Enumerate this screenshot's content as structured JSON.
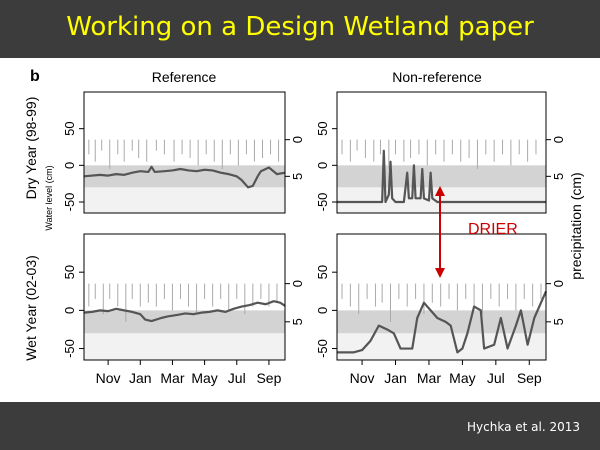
{
  "slide": {
    "title": "Working on a Design Wetland paper",
    "citation": "Hychka et al. 2013"
  },
  "colors": {
    "title": "#ffff00",
    "bar": "#3c3c3c",
    "annotation": "#cc0000",
    "band": "#d3d3d3",
    "below_band": "#f2f2f2",
    "water_line": "#555555",
    "precip_bars": "#aaaaaa"
  },
  "chart_data": {
    "type": "line",
    "panel_letter": "b",
    "column_titles": [
      "Reference",
      "Non-reference"
    ],
    "row_labels": [
      "Dry Year (98-99)",
      "Wet Year (02-03)"
    ],
    "ylabel_left_small": "Water level (cm)",
    "ylabel_right": "precipitation (cm)",
    "x_ticks": [
      "Nov",
      "Jan",
      "Mar",
      "May",
      "Jul",
      "Sep"
    ],
    "x_tick_positions": [
      1.5,
      3.5,
      5.5,
      7.5,
      9.5,
      11.5
    ],
    "xlim": [
      0,
      12.5
    ],
    "left_axis": {
      "ylim": [
        -65,
        100
      ],
      "ticks": [
        "50",
        "0",
        "-50"
      ],
      "tick_values": [
        50,
        0,
        -50
      ]
    },
    "right_axis": {
      "ylim": [
        10,
        -6.5
      ],
      "ticks": [
        "0",
        "5"
      ],
      "tick_values": [
        0,
        5
      ]
    },
    "reference_band": [
      -30,
      0
    ],
    "annotation": {
      "text": "DRIER"
    },
    "panels": [
      {
        "row": 0,
        "col": 0,
        "water_level": [
          [
            0,
            -15
          ],
          [
            1,
            -13
          ],
          [
            1.5,
            -14
          ],
          [
            2,
            -12
          ],
          [
            2.5,
            -13
          ],
          [
            3,
            -10
          ],
          [
            3.5,
            -8
          ],
          [
            4,
            -9
          ],
          [
            4.2,
            -2
          ],
          [
            4.4,
            -9
          ],
          [
            5,
            -8
          ],
          [
            5.5,
            -7
          ],
          [
            6,
            -5
          ],
          [
            6.5,
            -7
          ],
          [
            7,
            -8
          ],
          [
            7.5,
            -6
          ],
          [
            8,
            -7
          ],
          [
            8.5,
            -10
          ],
          [
            9,
            -12
          ],
          [
            9.5,
            -15
          ],
          [
            9.8,
            -20
          ],
          [
            10.2,
            -30
          ],
          [
            10.5,
            -28
          ],
          [
            10.8,
            -15
          ],
          [
            11,
            -8
          ],
          [
            11.5,
            -3
          ],
          [
            12,
            -12
          ],
          [
            12.5,
            -10
          ]
        ],
        "precip": [
          [
            0.3,
            2
          ],
          [
            0.7,
            3
          ],
          [
            1.1,
            1.5
          ],
          [
            1.6,
            4
          ],
          [
            2.1,
            2
          ],
          [
            2.5,
            3
          ],
          [
            3.0,
            1.5
          ],
          [
            3.4,
            2.5
          ],
          [
            3.9,
            3
          ],
          [
            4.5,
            1.5
          ],
          [
            5.0,
            2
          ],
          [
            5.6,
            3
          ],
          [
            6.1,
            2
          ],
          [
            6.6,
            2.5
          ],
          [
            7.1,
            3.5
          ],
          [
            7.6,
            2
          ],
          [
            8.1,
            3
          ],
          [
            8.6,
            4
          ],
          [
            9.1,
            2
          ],
          [
            9.6,
            3.5
          ],
          [
            10.1,
            2
          ],
          [
            10.6,
            3
          ],
          [
            11.1,
            2.5
          ],
          [
            11.6,
            2
          ],
          [
            12.1,
            3
          ]
        ]
      },
      {
        "row": 0,
        "col": 1,
        "water_level": [
          [
            0,
            -50
          ],
          [
            2.5,
            -50
          ],
          [
            2.7,
            -50
          ],
          [
            2.8,
            20
          ],
          [
            2.9,
            -50
          ],
          [
            3.1,
            -40
          ],
          [
            3.2,
            5
          ],
          [
            3.3,
            -45
          ],
          [
            3.5,
            -50
          ],
          [
            4,
            -50
          ],
          [
            4.2,
            -10
          ],
          [
            4.3,
            -45
          ],
          [
            4.5,
            -45
          ],
          [
            4.6,
            0
          ],
          [
            4.7,
            -45
          ],
          [
            5,
            -45
          ],
          [
            5.1,
            -5
          ],
          [
            5.2,
            -45
          ],
          [
            5.5,
            -48
          ],
          [
            5.6,
            -10
          ],
          [
            5.7,
            -45
          ],
          [
            6,
            -50
          ],
          [
            12.5,
            -50
          ]
        ],
        "precip": [
          [
            0.3,
            2
          ],
          [
            0.8,
            3
          ],
          [
            1.2,
            1.5
          ],
          [
            1.7,
            2.5
          ],
          [
            2.2,
            3
          ],
          [
            2.6,
            2
          ],
          [
            3.1,
            4
          ],
          [
            3.5,
            2
          ],
          [
            4.0,
            3
          ],
          [
            4.4,
            2.5
          ],
          [
            4.9,
            2
          ],
          [
            5.4,
            3.5
          ],
          [
            5.9,
            2
          ],
          [
            6.4,
            3
          ],
          [
            6.9,
            2
          ],
          [
            7.4,
            3
          ],
          [
            7.9,
            2.5
          ],
          [
            8.4,
            4
          ],
          [
            8.9,
            2
          ],
          [
            9.4,
            3
          ],
          [
            9.9,
            2
          ],
          [
            10.4,
            3.5
          ],
          [
            10.9,
            2
          ],
          [
            11.4,
            3
          ],
          [
            11.9,
            2
          ]
        ]
      },
      {
        "row": 1,
        "col": 0,
        "water_level": [
          [
            0,
            -3
          ],
          [
            0.5,
            -2
          ],
          [
            1,
            0
          ],
          [
            1.5,
            -1
          ],
          [
            2,
            2
          ],
          [
            2.5,
            0
          ],
          [
            3,
            -2
          ],
          [
            3.5,
            -5
          ],
          [
            3.8,
            -12
          ],
          [
            4.2,
            -14
          ],
          [
            4.8,
            -10
          ],
          [
            5.2,
            -8
          ],
          [
            5.8,
            -6
          ],
          [
            6.3,
            -4
          ],
          [
            6.8,
            -5
          ],
          [
            7.3,
            -3
          ],
          [
            7.8,
            -2
          ],
          [
            8.3,
            0
          ],
          [
            8.8,
            -2
          ],
          [
            9.3,
            2
          ],
          [
            9.8,
            5
          ],
          [
            10.3,
            7
          ],
          [
            10.8,
            10
          ],
          [
            11.3,
            8
          ],
          [
            11.8,
            12
          ],
          [
            12.2,
            10
          ],
          [
            12.5,
            6
          ]
        ],
        "precip": [
          [
            0.3,
            3
          ],
          [
            0.7,
            2
          ],
          [
            1.2,
            4
          ],
          [
            1.6,
            2
          ],
          [
            2.1,
            3
          ],
          [
            2.6,
            5
          ],
          [
            3.0,
            2
          ],
          [
            3.5,
            3
          ],
          [
            4.0,
            2.5
          ],
          [
            4.5,
            3
          ],
          [
            5.0,
            2
          ],
          [
            5.5,
            3.5
          ],
          [
            6.0,
            2
          ],
          [
            6.5,
            3
          ],
          [
            7.0,
            4
          ],
          [
            7.5,
            2
          ],
          [
            8.0,
            3
          ],
          [
            8.5,
            2
          ],
          [
            9.0,
            3.5
          ],
          [
            9.5,
            2
          ],
          [
            10.0,
            4
          ],
          [
            10.5,
            3
          ],
          [
            11.0,
            2
          ],
          [
            11.5,
            3
          ],
          [
            12.0,
            2.5
          ]
        ]
      },
      {
        "row": 1,
        "col": 1,
        "water_level": [
          [
            0,
            -55
          ],
          [
            1,
            -55
          ],
          [
            1.5,
            -52
          ],
          [
            2,
            -40
          ],
          [
            2.5,
            -20
          ],
          [
            3,
            -25
          ],
          [
            3.4,
            -30
          ],
          [
            3.8,
            -50
          ],
          [
            4.5,
            -50
          ],
          [
            4.8,
            -10
          ],
          [
            5.2,
            10
          ],
          [
            5.6,
            0
          ],
          [
            6,
            -10
          ],
          [
            6.5,
            -15
          ],
          [
            6.8,
            -20
          ],
          [
            7.2,
            -55
          ],
          [
            7.5,
            -50
          ],
          [
            7.8,
            -30
          ],
          [
            8.2,
            5
          ],
          [
            8.6,
            0
          ],
          [
            8.8,
            -50
          ],
          [
            9.4,
            -45
          ],
          [
            9.8,
            -10
          ],
          [
            10.2,
            -50
          ],
          [
            10.7,
            -20
          ],
          [
            11,
            0
          ],
          [
            11.4,
            -45
          ],
          [
            11.8,
            -10
          ],
          [
            12.2,
            10
          ],
          [
            12.5,
            25
          ]
        ],
        "precip": [
          [
            0.3,
            2
          ],
          [
            0.8,
            3
          ],
          [
            1.3,
            4
          ],
          [
            1.8,
            2
          ],
          [
            2.3,
            3
          ],
          [
            2.7,
            2.5
          ],
          [
            3.2,
            5
          ],
          [
            3.7,
            2
          ],
          [
            4.2,
            3
          ],
          [
            4.7,
            2
          ],
          [
            5.2,
            4
          ],
          [
            5.7,
            2.5
          ],
          [
            6.2,
            3
          ],
          [
            6.7,
            2
          ],
          [
            7.2,
            3.5
          ],
          [
            7.7,
            2
          ],
          [
            8.2,
            3
          ],
          [
            8.7,
            4
          ],
          [
            9.2,
            2
          ],
          [
            9.7,
            3
          ],
          [
            10.2,
            2
          ],
          [
            10.7,
            3.5
          ],
          [
            11.2,
            2
          ],
          [
            11.7,
            3
          ],
          [
            12.2,
            2
          ]
        ]
      }
    ]
  }
}
